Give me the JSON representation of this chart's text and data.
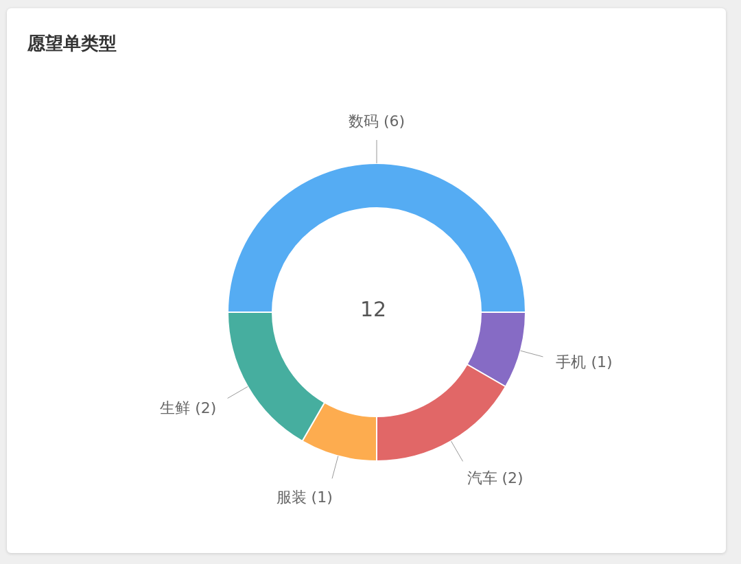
{
  "chart_data": {
    "type": "donut",
    "title": "愿望单类型",
    "categories": [
      "数码",
      "手机",
      "汽车",
      "服装",
      "生鲜"
    ],
    "values": [
      6,
      1,
      2,
      1,
      2
    ],
    "colors": [
      "#55acf3",
      "#866bc5",
      "#e16767",
      "#fdac4f",
      "#46ae9f"
    ],
    "value_labels": [
      "(6)",
      "(1)",
      "(2)",
      "(1)",
      "(2)"
    ],
    "legend": false,
    "annotations": [
      "12"
    ]
  }
}
